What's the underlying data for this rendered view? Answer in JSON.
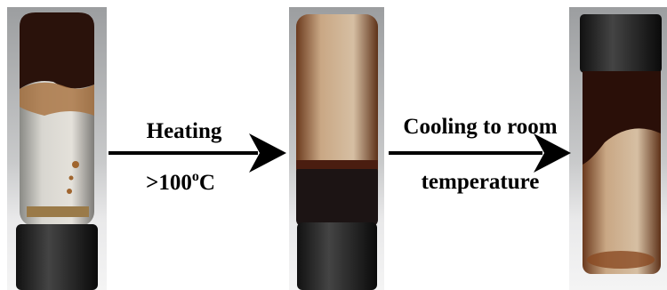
{
  "steps": [
    {
      "label": "Heating",
      "condition": {
        "main": ">100",
        "sup": "o",
        "unit": "C"
      }
    },
    {
      "label": "Cooling to room",
      "condition": {
        "main": "temperature"
      }
    }
  ]
}
